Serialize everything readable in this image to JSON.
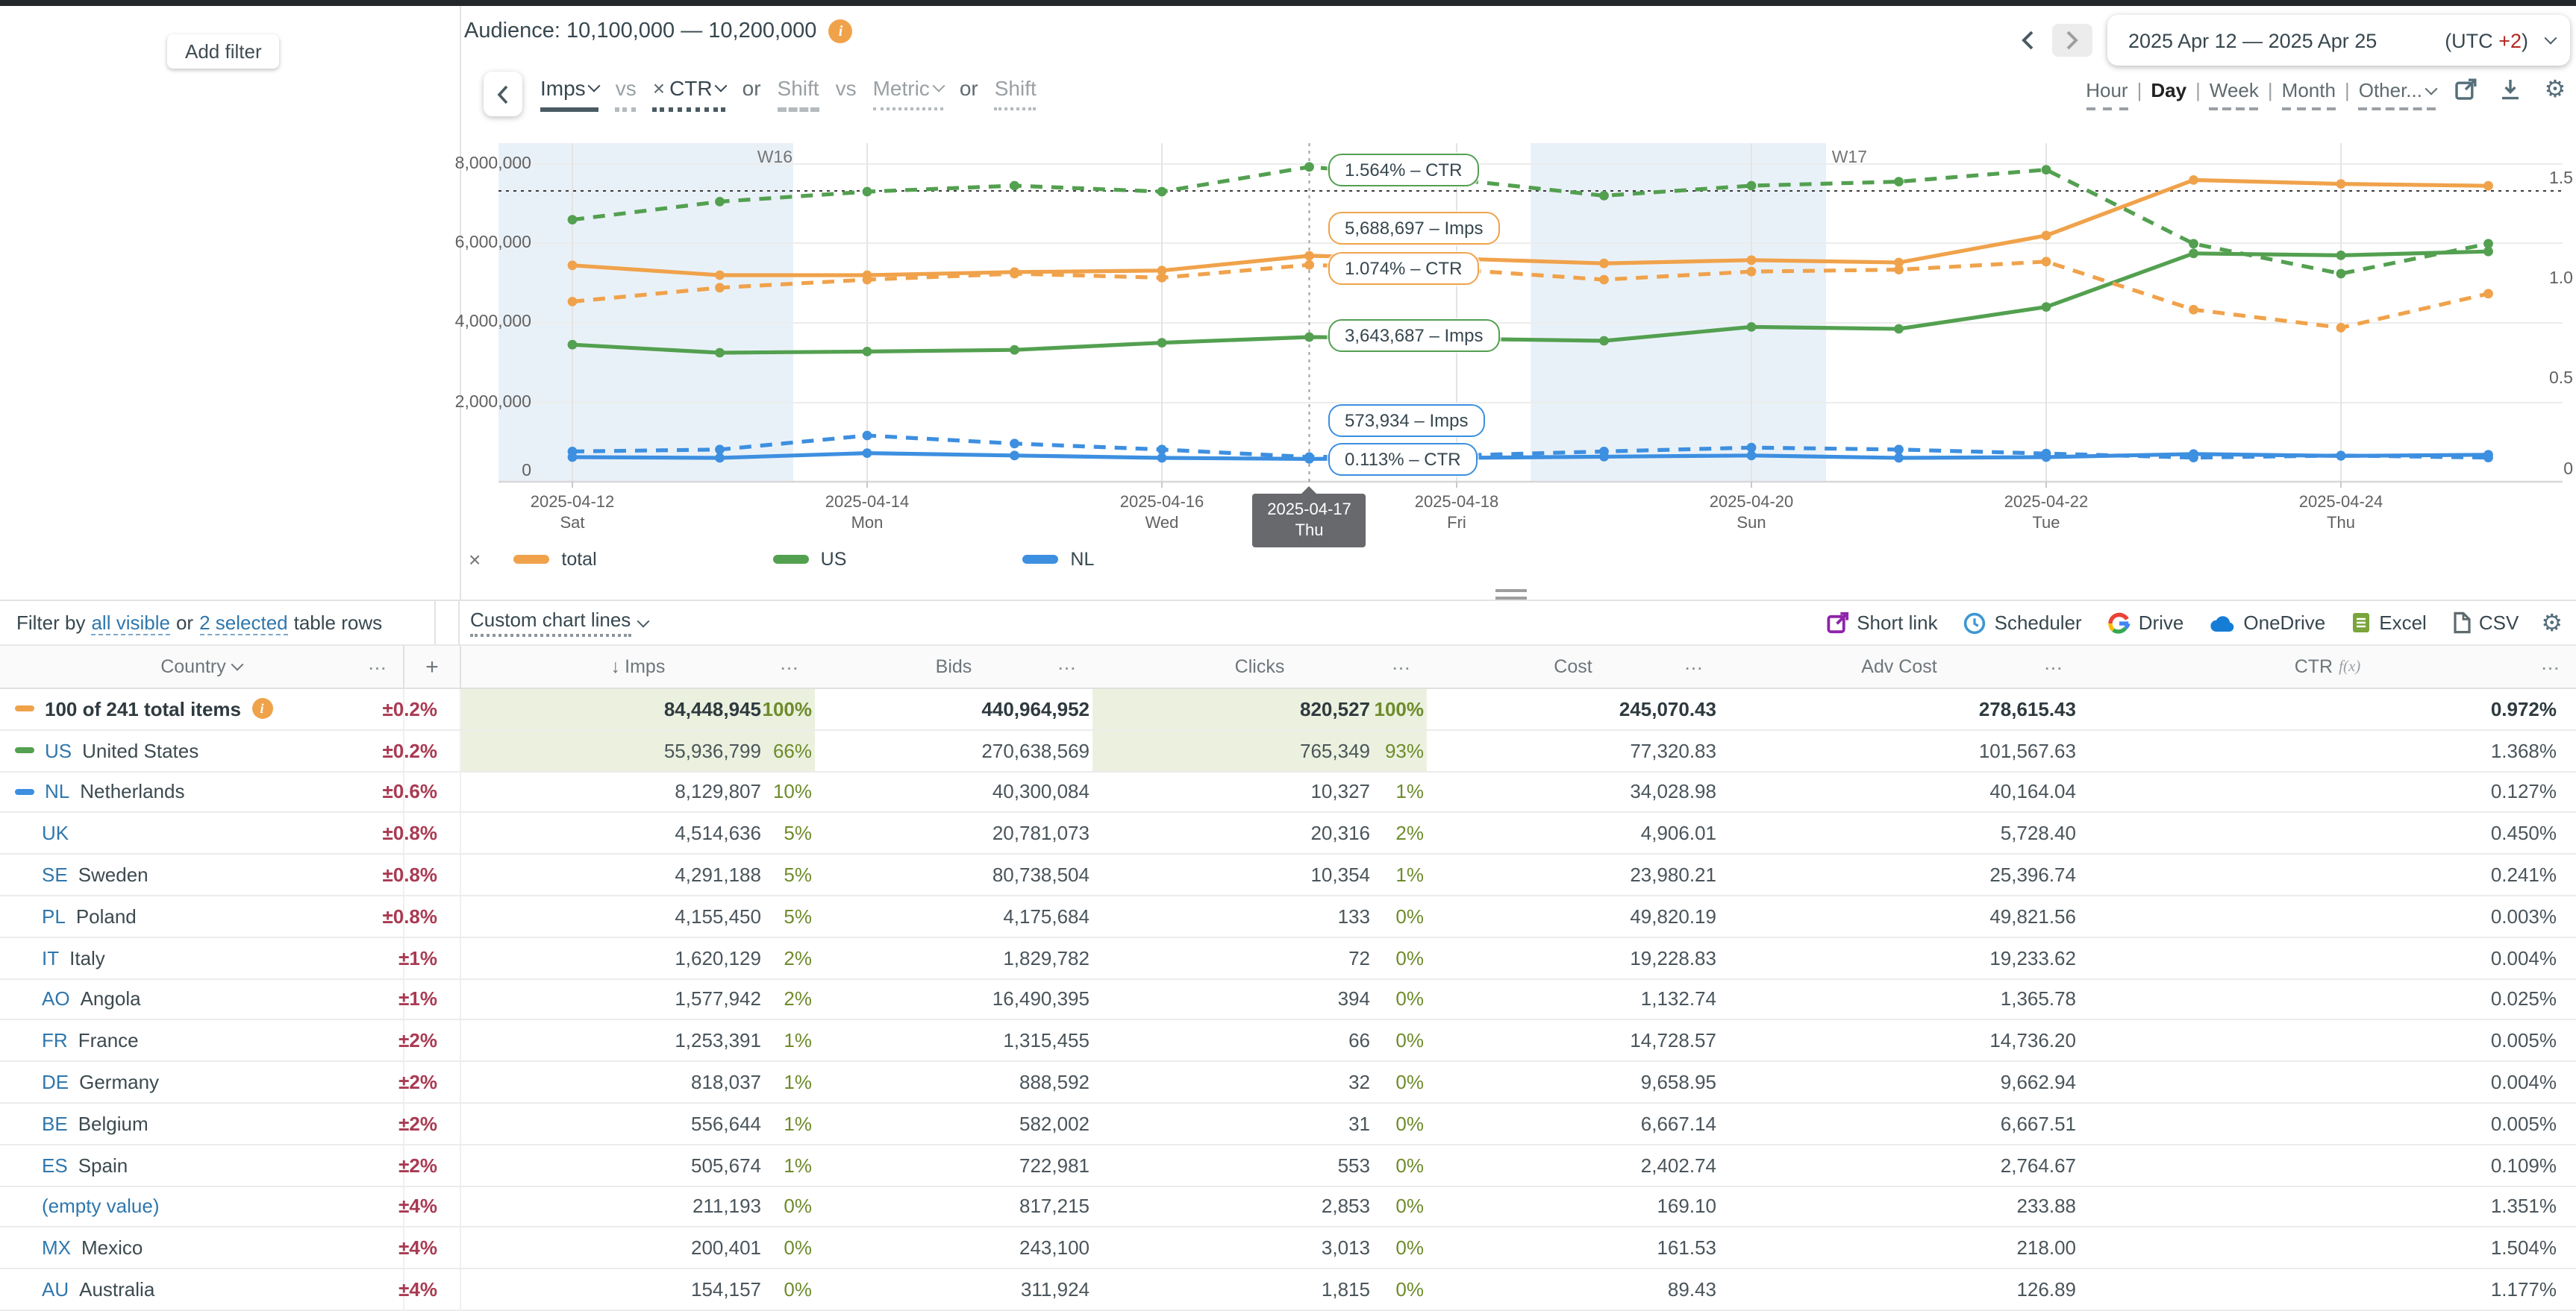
{
  "topbar": {
    "add_filter": "Add filter",
    "audience_label": "Audience: 10,100,000 — 10,200,000",
    "date_range": "2025 Apr 12 — 2025 Apr 25",
    "utc_prefix": "(UTC ",
    "utc_offset": "+2",
    "utc_suffix": ")"
  },
  "metric_bar": {
    "items": [
      {
        "label": "Imps",
        "caret": true,
        "tone": "dark",
        "underline": "solid"
      },
      {
        "label": "vs",
        "tone": "gray",
        "underline": "sqgray"
      },
      {
        "label": "CTR",
        "prefix": "×",
        "caret": true,
        "tone": "dark",
        "underline": "sqdark"
      },
      {
        "label": "or",
        "tone": "mid",
        "underline": "none"
      },
      {
        "label": "Shift",
        "tone": "gray",
        "underline": "dash"
      },
      {
        "label": "vs",
        "tone": "gray",
        "underline": "none"
      },
      {
        "label": "Metric",
        "caret": true,
        "tone": "gray",
        "underline": "dots"
      },
      {
        "label": "or",
        "tone": "mid",
        "underline": "none"
      },
      {
        "label": "Shift",
        "tone": "gray",
        "underline": "dots"
      }
    ]
  },
  "granularity": {
    "options": [
      {
        "label": "Hour",
        "underline": true
      },
      {
        "label": "Day",
        "selected": true
      },
      {
        "label": "Week",
        "underline": true
      },
      {
        "label": "Month",
        "underline": true
      },
      {
        "label": "Other...",
        "underline": true,
        "caret": true
      }
    ]
  },
  "chart": {
    "y_left_ticks": [
      "8,000,000",
      "6,000,000",
      "4,000,000",
      "2,000,000",
      "0"
    ],
    "y_right_ticks": [
      "1.5",
      "1.0",
      "0.5",
      "0"
    ],
    "week_labels": [
      "W16",
      "W17"
    ],
    "x_ticks": [
      {
        "date": "2025-04-12",
        "dow": "Sat"
      },
      {
        "date": "2025-04-14",
        "dow": "Mon"
      },
      {
        "date": "2025-04-16",
        "dow": "Wed"
      },
      {
        "date": "2025-04-18",
        "dow": "Fri"
      },
      {
        "date": "2025-04-20",
        "dow": "Sun"
      },
      {
        "date": "2025-04-22",
        "dow": "Tue"
      },
      {
        "date": "2025-04-24",
        "dow": "Thu"
      }
    ],
    "selected_x": {
      "date": "2025-04-17",
      "dow": "Thu"
    },
    "tooltips": [
      {
        "text": "1.564% – CTR",
        "series": "US"
      },
      {
        "text": "5,688,697 – Imps",
        "series": "total"
      },
      {
        "text": "1.074% – CTR",
        "series": "total"
      },
      {
        "text": "3,643,687 – Imps",
        "series": "US"
      },
      {
        "text": "573,934 – Imps",
        "series": "NL"
      },
      {
        "text": "0.113% – CTR",
        "series": "NL"
      }
    ],
    "legend": {
      "clear": "×",
      "items": [
        {
          "label": "total",
          "color": "#f0a24b"
        },
        {
          "label": "US",
          "color": "#53a050"
        },
        {
          "label": "NL",
          "color": "#3d8fe0"
        }
      ]
    }
  },
  "chart_data": {
    "type": "line",
    "title": "",
    "x": [
      "2025-04-12",
      "2025-04-13",
      "2025-04-14",
      "2025-04-15",
      "2025-04-16",
      "2025-04-17",
      "2025-04-18",
      "2025-04-19",
      "2025-04-20",
      "2025-04-21",
      "2025-04-22",
      "2025-04-23",
      "2025-04-24",
      "2025-04-25"
    ],
    "x_granularity": "Day",
    "left_axis": {
      "label": "Imps",
      "range": [
        0,
        8000000
      ],
      "ticks": [
        0,
        2000000,
        4000000,
        6000000,
        8000000
      ]
    },
    "right_axis": {
      "label": "CTR %",
      "range": [
        0,
        1.7
      ],
      "ticks": [
        0,
        0.5,
        1.0,
        1.5
      ]
    },
    "grid": true,
    "legend_position": "bottom",
    "weekend_bands": [
      [
        "2025-04-12",
        "2025-04-13"
      ],
      [
        "2025-04-19",
        "2025-04-20"
      ]
    ],
    "threshold_ctr": 1.44,
    "selected_date": "2025-04-17",
    "selected_values": {
      "total_imps": 5688697,
      "us_ctr": 1.564,
      "total_ctr": 1.074,
      "us_imps": 3643687,
      "nl_imps": 573934,
      "nl_ctr": 0.113
    },
    "values_estimated_except_selected": true,
    "series": [
      {
        "name": "total",
        "metric": "Imps",
        "axis": "left",
        "style": "solid",
        "color": "#f0a24b",
        "values": [
          5450000,
          5200000,
          5200000,
          5280000,
          5320000,
          5688697,
          5620000,
          5500000,
          5580000,
          5520000,
          6200000,
          7600000,
          7500000,
          7450000
        ]
      },
      {
        "name": "US",
        "metric": "Imps",
        "axis": "left",
        "style": "solid",
        "color": "#53a050",
        "values": [
          3450000,
          3250000,
          3280000,
          3320000,
          3500000,
          3643687,
          3600000,
          3550000,
          3900000,
          3850000,
          4400000,
          5750000,
          5700000,
          5800000
        ]
      },
      {
        "name": "NL",
        "metric": "Imps",
        "axis": "left",
        "style": "solid",
        "color": "#3d8fe0",
        "values": [
          620000,
          600000,
          720000,
          660000,
          600000,
          573934,
          600000,
          630000,
          660000,
          600000,
          620000,
          700000,
          650000,
          680000
        ]
      },
      {
        "name": "total",
        "metric": "CTR",
        "axis": "right",
        "style": "dashed",
        "color": "#f0a24b",
        "values": [
          0.89,
          0.96,
          1.0,
          1.03,
          1.01,
          1.074,
          1.05,
          1.0,
          1.04,
          1.05,
          1.09,
          0.85,
          0.76,
          0.93
        ]
      },
      {
        "name": "US",
        "metric": "CTR",
        "axis": "right",
        "style": "dashed",
        "color": "#53a050",
        "values": [
          1.3,
          1.39,
          1.44,
          1.47,
          1.44,
          1.564,
          1.5,
          1.42,
          1.47,
          1.49,
          1.55,
          1.18,
          1.03,
          1.18
        ]
      },
      {
        "name": "NL",
        "metric": "CTR",
        "axis": "right",
        "style": "dashed",
        "color": "#3d8fe0",
        "values": [
          0.14,
          0.15,
          0.22,
          0.18,
          0.15,
          0.113,
          0.12,
          0.14,
          0.16,
          0.15,
          0.13,
          0.11,
          0.12,
          0.11
        ]
      }
    ]
  },
  "toolbar": {
    "filter_prefix": "Filter by",
    "all_visible": "all visible",
    "or_word": "or",
    "selected_link": "2 selected",
    "filter_suffix": "table rows",
    "custom_lines": "Custom chart lines",
    "exports": [
      {
        "label": "Short link",
        "icon": "shortlink"
      },
      {
        "label": "Scheduler",
        "icon": "scheduler"
      },
      {
        "label": "Drive",
        "icon": "drive"
      },
      {
        "label": "OneDrive",
        "icon": "onedrive"
      },
      {
        "label": "Excel",
        "icon": "excel"
      },
      {
        "label": "CSV",
        "icon": "csv"
      }
    ]
  },
  "table": {
    "headers": {
      "country": "Country",
      "plus": "+",
      "sort_arrow": "↓",
      "imps": "Imps",
      "bids": "Bids",
      "clicks": "Clicks",
      "cost": "Cost",
      "adv_cost": "Adv Cost",
      "ctr": "CTR",
      "fx": "f(x)",
      "menu": "⋯"
    },
    "rows": [
      {
        "swatch": "#f0a24b",
        "code": "",
        "name": "100 of 241 total items",
        "info": true,
        "bold": true,
        "hl": true,
        "acc": "±0.2%",
        "imps": "84,448,945",
        "imps_pct": "100%",
        "bids": "440,964,952",
        "clicks": "820,527",
        "clicks_pct": "100%",
        "cost": "245,070.43",
        "adv_cost": "278,615.43",
        "ctr": "0.972%"
      },
      {
        "swatch": "#53a050",
        "code": "US",
        "name": "United States",
        "hl": true,
        "acc": "±0.2%",
        "imps": "55,936,799",
        "imps_pct": "66%",
        "bids": "270,638,569",
        "clicks": "765,349",
        "clicks_pct": "93%",
        "cost": "77,320.83",
        "adv_cost": "101,567.63",
        "ctr": "1.368%"
      },
      {
        "swatch": "#3d8fe0",
        "code": "NL",
        "name": "Netherlands",
        "acc": "±0.6%",
        "imps": "8,129,807",
        "imps_pct": "10%",
        "bids": "40,300,084",
        "clicks": "10,327",
        "clicks_pct": "1%",
        "cost": "34,028.98",
        "adv_cost": "40,164.04",
        "ctr": "0.127%"
      },
      {
        "code": "UK",
        "name": "",
        "acc": "±0.8%",
        "imps": "4,514,636",
        "imps_pct": "5%",
        "bids": "20,781,073",
        "clicks": "20,316",
        "clicks_pct": "2%",
        "cost": "4,906.01",
        "adv_cost": "5,728.40",
        "ctr": "0.450%"
      },
      {
        "code": "SE",
        "name": "Sweden",
        "acc": "±0.8%",
        "imps": "4,291,188",
        "imps_pct": "5%",
        "bids": "80,738,504",
        "clicks": "10,354",
        "clicks_pct": "1%",
        "cost": "23,980.21",
        "adv_cost": "25,396.74",
        "ctr": "0.241%"
      },
      {
        "code": "PL",
        "name": "Poland",
        "acc": "±0.8%",
        "imps": "4,155,450",
        "imps_pct": "5%",
        "bids": "4,175,684",
        "clicks": "133",
        "clicks_pct": "0%",
        "cost": "49,820.19",
        "adv_cost": "49,821.56",
        "ctr": "0.003%"
      },
      {
        "code": "IT",
        "name": "Italy",
        "acc": "±1%",
        "imps": "1,620,129",
        "imps_pct": "2%",
        "bids": "1,829,782",
        "clicks": "72",
        "clicks_pct": "0%",
        "cost": "19,228.83",
        "adv_cost": "19,233.62",
        "ctr": "0.004%"
      },
      {
        "code": "AO",
        "name": "Angola",
        "acc": "±1%",
        "imps": "1,577,942",
        "imps_pct": "2%",
        "bids": "16,490,395",
        "clicks": "394",
        "clicks_pct": "0%",
        "cost": "1,132.74",
        "adv_cost": "1,365.78",
        "ctr": "0.025%"
      },
      {
        "code": "FR",
        "name": "France",
        "acc": "±2%",
        "imps": "1,253,391",
        "imps_pct": "1%",
        "bids": "1,315,455",
        "clicks": "66",
        "clicks_pct": "0%",
        "cost": "14,728.57",
        "adv_cost": "14,736.20",
        "ctr": "0.005%"
      },
      {
        "code": "DE",
        "name": "Germany",
        "acc": "±2%",
        "imps": "818,037",
        "imps_pct": "1%",
        "bids": "888,592",
        "clicks": "32",
        "clicks_pct": "0%",
        "cost": "9,658.95",
        "adv_cost": "9,662.94",
        "ctr": "0.004%"
      },
      {
        "code": "BE",
        "name": "Belgium",
        "acc": "±2%",
        "imps": "556,644",
        "imps_pct": "1%",
        "bids": "582,002",
        "clicks": "31",
        "clicks_pct": "0%",
        "cost": "6,667.14",
        "adv_cost": "6,667.51",
        "ctr": "0.005%"
      },
      {
        "code": "ES",
        "name": "Spain",
        "acc": "±2%",
        "imps": "505,674",
        "imps_pct": "1%",
        "bids": "722,981",
        "clicks": "553",
        "clicks_pct": "0%",
        "cost": "2,402.74",
        "adv_cost": "2,764.67",
        "ctr": "0.109%"
      },
      {
        "code": "(empty value)",
        "name": "",
        "acc": "±4%",
        "imps": "211,193",
        "imps_pct": "0%",
        "bids": "817,215",
        "clicks": "2,853",
        "clicks_pct": "0%",
        "cost": "169.10",
        "adv_cost": "233.88",
        "ctr": "1.351%"
      },
      {
        "code": "MX",
        "name": "Mexico",
        "acc": "±4%",
        "imps": "200,401",
        "imps_pct": "0%",
        "bids": "243,100",
        "clicks": "3,013",
        "clicks_pct": "0%",
        "cost": "161.53",
        "adv_cost": "218.00",
        "ctr": "1.504%"
      },
      {
        "code": "AU",
        "name": "Australia",
        "acc": "±4%",
        "imps": "154,157",
        "imps_pct": "0%",
        "bids": "311,924",
        "clicks": "1,815",
        "clicks_pct": "0%",
        "cost": "89.43",
        "adv_cost": "126.89",
        "ctr": "1.177%"
      }
    ]
  }
}
